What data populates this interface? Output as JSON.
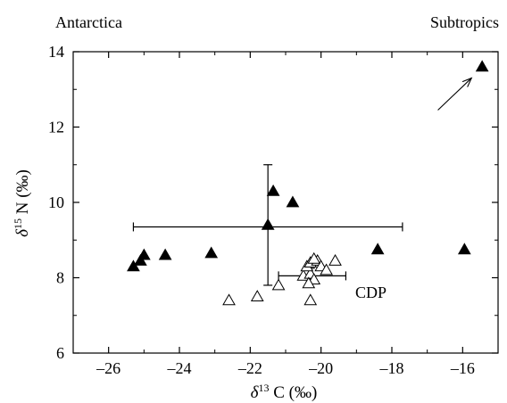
{
  "chart_data": {
    "type": "scatter",
    "xlabel": "δ¹³C (‰)",
    "ylabel": "δ¹⁵N (‰)",
    "xlabel_parts": {
      "delta": "δ",
      "sup": "13",
      "rest": " C (‰)"
    },
    "ylabel_parts": {
      "delta": "δ",
      "sup": "15",
      "rest": " N (‰)"
    },
    "xlim": [
      -27,
      -15
    ],
    "ylim": [
      6,
      14
    ],
    "xticks": [
      -26,
      -24,
      -22,
      -20,
      -18,
      -16
    ],
    "yticks": [
      6,
      8,
      10,
      12,
      14
    ],
    "xtick_labels": [
      "–26",
      "–24",
      "–22",
      "–20",
      "–18",
      "–16"
    ],
    "ytick_labels": [
      "6",
      "8",
      "10",
      "12",
      "14"
    ],
    "grid": false,
    "corner_labels": {
      "left": "Antarctica",
      "right": "Subtropics"
    },
    "annotation": "CDP",
    "series": [
      {
        "marker": "filled-triangle",
        "color": "#000000",
        "points": [
          {
            "x": -25.3,
            "y": 8.3
          },
          {
            "x": -25.1,
            "y": 8.45
          },
          {
            "x": -25.0,
            "y": 8.6
          },
          {
            "x": -24.4,
            "y": 8.6
          },
          {
            "x": -23.1,
            "y": 8.65
          },
          {
            "x": -21.5,
            "y": 9.4
          },
          {
            "x": -21.35,
            "y": 10.3
          },
          {
            "x": -20.8,
            "y": 10.0
          },
          {
            "x": -18.4,
            "y": 8.75
          },
          {
            "x": -15.95,
            "y": 8.75
          },
          {
            "x": -15.45,
            "y": 13.6
          }
        ]
      },
      {
        "marker": "open-triangle",
        "color": "#000000",
        "points": [
          {
            "x": -22.6,
            "y": 7.4
          },
          {
            "x": -21.8,
            "y": 7.5
          },
          {
            "x": -21.2,
            "y": 7.8
          },
          {
            "x": -20.5,
            "y": 8.05
          },
          {
            "x": -20.3,
            "y": 8.1
          },
          {
            "x": -20.2,
            "y": 7.95
          },
          {
            "x": -20.4,
            "y": 8.3
          },
          {
            "x": -20.3,
            "y": 8.4
          },
          {
            "x": -20.1,
            "y": 8.45
          },
          {
            "x": -20.0,
            "y": 8.3
          },
          {
            "x": -19.85,
            "y": 8.2
          },
          {
            "x": -19.6,
            "y": 8.45
          },
          {
            "x": -20.2,
            "y": 8.5
          },
          {
            "x": -20.35,
            "y": 7.85
          },
          {
            "x": -20.3,
            "y": 7.4
          }
        ]
      }
    ],
    "error_bars": [
      {
        "center": [
          -21.5,
          9.35
        ],
        "x_range": [
          -25.3,
          -17.7
        ],
        "y_range": [
          7.8,
          11.0
        ]
      },
      {
        "center": [
          -20.3,
          8.05
        ],
        "x_range": [
          -21.2,
          -19.3
        ],
        "y_range": [
          7.9,
          8.25
        ]
      }
    ],
    "arrow": {
      "from": [
        -16.7,
        12.45
      ],
      "to": [
        -15.75,
        13.3
      ]
    }
  }
}
